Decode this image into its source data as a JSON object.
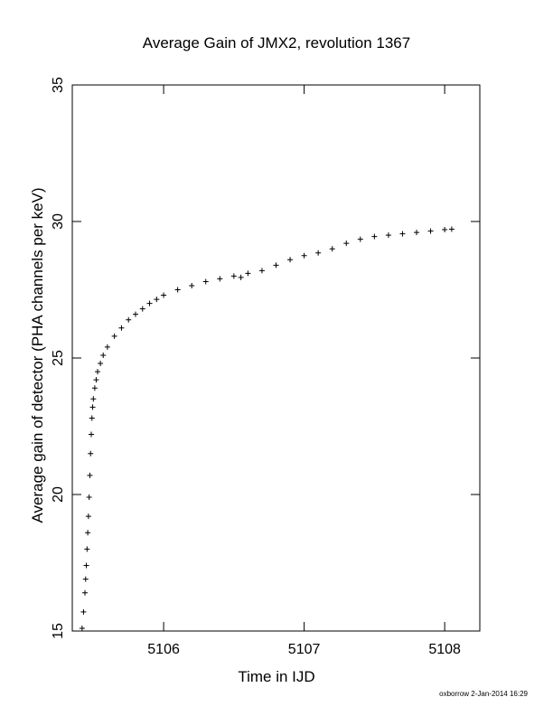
{
  "footer": {
    "author_stamp": "oxborrow  2-Jan-2014 16:29"
  },
  "chart_data": {
    "type": "scatter",
    "title": "Average Gain of JMX2, revolution 1367",
    "xlabel": "Time in IJD",
    "ylabel": "Average gain of detector (PHA channels per keV)",
    "xlim": [
      5105.35,
      5108.25
    ],
    "ylim": [
      15,
      35
    ],
    "x_ticks": [
      5106,
      5107,
      5108
    ],
    "x_tick_labels": [
      "5106",
      "5107",
      "5108"
    ],
    "y_ticks": [
      15,
      20,
      25,
      30,
      35
    ],
    "y_tick_labels": [
      "15",
      "20",
      "25",
      "30",
      "35"
    ],
    "grid": false,
    "marker": "plus",
    "color": "#000000",
    "series": [
      {
        "x": [
          5105.42,
          5105.43,
          5105.44,
          5105.445,
          5105.45,
          5105.455,
          5105.46,
          5105.465,
          5105.47,
          5105.475,
          5105.48,
          5105.485,
          5105.49,
          5105.495,
          5105.5,
          5105.51,
          5105.52,
          5105.53,
          5105.55,
          5105.57,
          5105.6,
          5105.65,
          5105.7,
          5105.75,
          5105.8,
          5105.85,
          5105.9,
          5105.95,
          5106.0,
          5106.1,
          5106.2,
          5106.3,
          5106.4,
          5106.5,
          5106.55,
          5106.6,
          5106.7,
          5106.8,
          5106.9,
          5107.0,
          5107.1,
          5107.2,
          5107.3,
          5107.4,
          5107.5,
          5107.6,
          5107.7,
          5107.8,
          5107.9,
          5108.0,
          5108.05
        ],
        "y": [
          15.1,
          15.7,
          16.4,
          16.9,
          17.4,
          18.0,
          18.6,
          19.2,
          19.9,
          20.7,
          21.5,
          22.2,
          22.8,
          23.2,
          23.5,
          23.9,
          24.2,
          24.5,
          24.8,
          25.1,
          25.4,
          25.8,
          26.1,
          26.4,
          26.6,
          26.8,
          27.0,
          27.15,
          27.3,
          27.5,
          27.65,
          27.8,
          27.9,
          28.0,
          27.95,
          28.1,
          28.2,
          28.4,
          28.6,
          28.75,
          28.85,
          29.0,
          29.2,
          29.35,
          29.45,
          29.5,
          29.55,
          29.6,
          29.65,
          29.7,
          29.72
        ]
      }
    ]
  }
}
